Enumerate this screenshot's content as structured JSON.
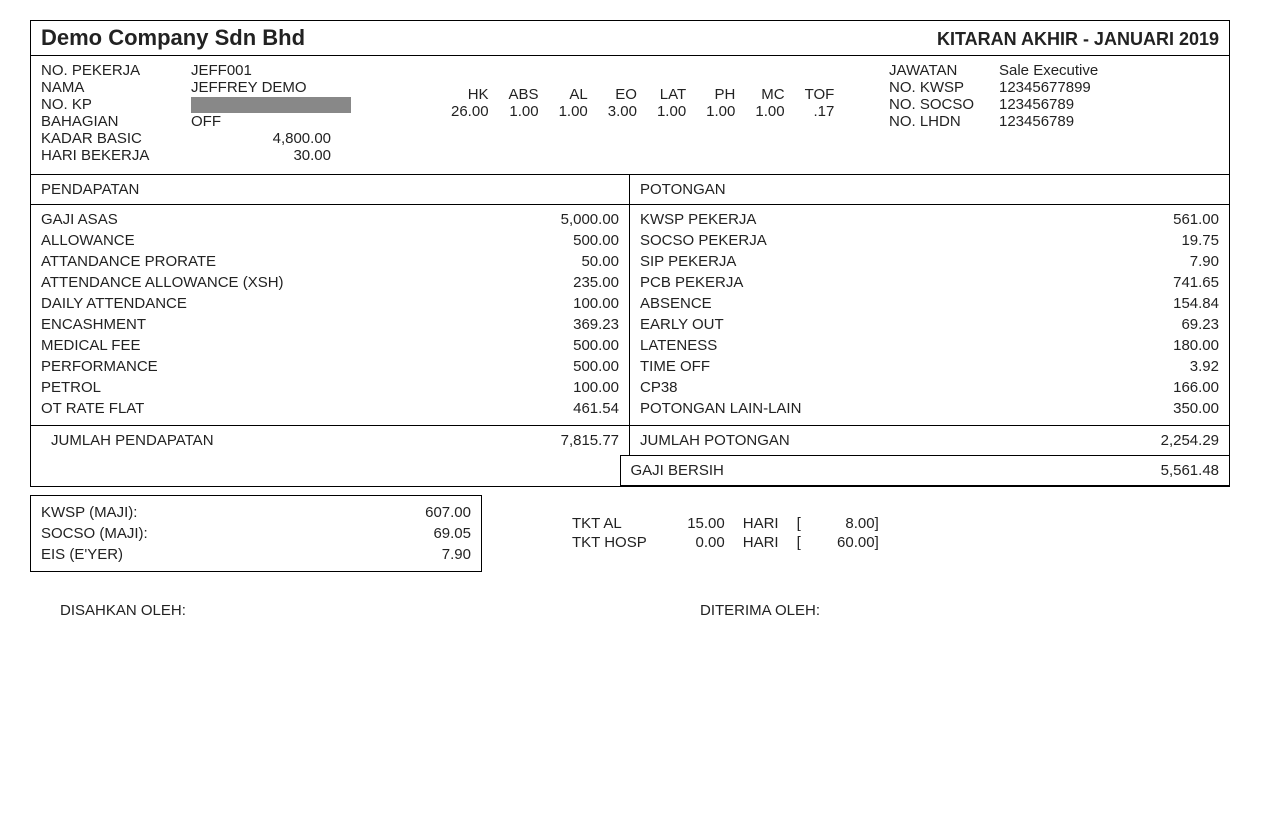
{
  "header": {
    "company": "Demo Company Sdn Bhd",
    "period": "KITARAN AKHIR  -  JANUARI 2019"
  },
  "employee": {
    "label_no_pekerja": "NO. PEKERJA",
    "no_pekerja": "JEFF001",
    "label_nama": "NAMA",
    "nama": "JEFFREY DEMO",
    "label_no_kp": "NO. KP",
    "label_bahagian": "BAHAGIAN",
    "bahagian": "OFF",
    "label_kadar_basic": "KADAR BASIC",
    "kadar_basic": "4,800.00",
    "label_hari_bekerja": "HARI BEKERJA",
    "hari_bekerja": "30.00"
  },
  "right_info": {
    "label_jawatan": "JAWATAN",
    "jawatan": "Sale Executive",
    "label_no_kwsp": "NO. KWSP",
    "no_kwsp": "12345677899",
    "label_no_socso": "NO. SOCSO",
    "no_socso": "123456789",
    "label_no_lhdn": "NO. LHDN",
    "no_lhdn": "123456789"
  },
  "attendance": {
    "headers": [
      "HK",
      "ABS",
      "AL",
      "EO",
      "LAT",
      "PH",
      "MC",
      "TOF"
    ],
    "values": [
      "26.00",
      "1.00",
      "1.00",
      "3.00",
      "1.00",
      "1.00",
      "1.00",
      ".17"
    ]
  },
  "income": {
    "title": "PENDAPATAN",
    "items": [
      {
        "label": "GAJI ASAS",
        "value": "5,000.00"
      },
      {
        "label": "ALLOWANCE",
        "value": "500.00"
      },
      {
        "label": "ATTANDANCE PRORATE",
        "value": "50.00"
      },
      {
        "label": "ATTENDANCE ALLOWANCE (XSH)",
        "value": "235.00"
      },
      {
        "label": "DAILY ATTENDANCE",
        "value": "100.00"
      },
      {
        "label": "ENCASHMENT",
        "value": "369.23"
      },
      {
        "label": "MEDICAL FEE",
        "value": "500.00"
      },
      {
        "label": "PERFORMANCE",
        "value": "500.00"
      },
      {
        "label": "PETROL",
        "value": "100.00"
      },
      {
        "label": "OT RATE FLAT",
        "value": "461.54"
      }
    ],
    "total_label": "JUMLAH PENDAPATAN",
    "total_value": "7,815.77"
  },
  "deductions": {
    "title": "POTONGAN",
    "items": [
      {
        "label": "KWSP PEKERJA",
        "value": "561.00"
      },
      {
        "label": "SOCSO PEKERJA",
        "value": "19.75"
      },
      {
        "label": "SIP PEKERJA",
        "value": "7.90"
      },
      {
        "label": "PCB PEKERJA",
        "value": "741.65"
      },
      {
        "label": "ABSENCE",
        "value": "154.84"
      },
      {
        "label": "EARLY OUT",
        "value": "69.23"
      },
      {
        "label": "LATENESS",
        "value": "180.00"
      },
      {
        "label": "TIME OFF",
        "value": "3.92"
      },
      {
        "label": "CP38",
        "value": "166.00"
      },
      {
        "label": "POTONGAN LAIN-LAIN",
        "value": "350.00"
      }
    ],
    "total_label": "JUMLAH POTONGAN",
    "total_value": "2,254.29"
  },
  "net": {
    "label": "GAJI BERSIH",
    "value": "5,561.48"
  },
  "employer": {
    "items": [
      {
        "label": "KWSP (MAJI):",
        "value": "607.00"
      },
      {
        "label": "SOCSO (MAJI):",
        "value": "69.05"
      },
      {
        "label": "EIS (E'YER)",
        "value": "7.90"
      }
    ]
  },
  "leave": {
    "rows": [
      {
        "label": "TKT  AL",
        "days": "15.00",
        "unit": "HARI",
        "bracket_open": "[",
        "balance": "8.00]"
      },
      {
        "label": "TKT  HOSP",
        "days": "0.00",
        "unit": "HARI",
        "bracket_open": "[",
        "balance": "60.00]"
      }
    ]
  },
  "sign": {
    "left": "DISAHKAN OLEH:",
    "right": "DITERIMA OLEH:"
  }
}
